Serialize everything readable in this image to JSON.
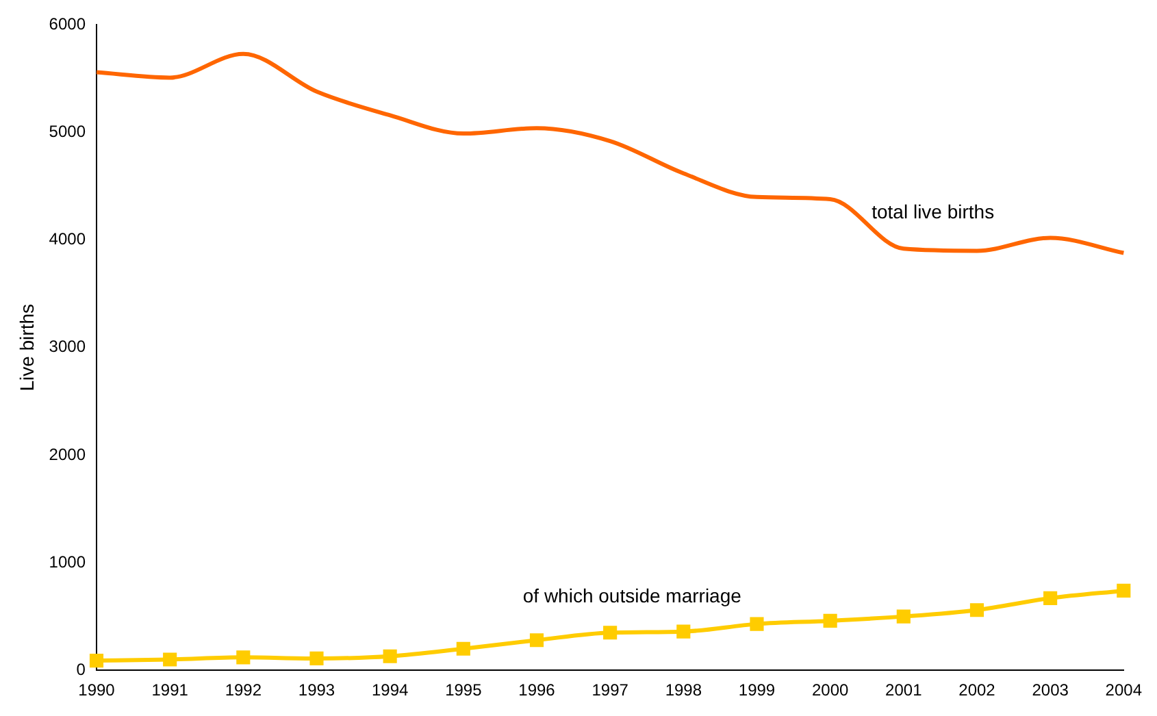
{
  "chart_data": {
    "type": "line",
    "ylabel": "Live births",
    "categories": [
      "1990",
      "1991",
      "1992",
      "1993",
      "1994",
      "1995",
      "1996",
      "1997",
      "1998",
      "1999",
      "2000",
      "2001",
      "2002",
      "2003",
      "2004"
    ],
    "series": [
      {
        "name": "total live births",
        "color": "#ff6600",
        "marker": "none",
        "values": [
          5560,
          5510,
          5730,
          5380,
          5160,
          4990,
          5040,
          4920,
          4620,
          4400,
          4380,
          3920,
          3900,
          4020,
          3880
        ]
      },
      {
        "name": "of which outside marriage",
        "color": "#ffcc00",
        "marker": "square",
        "values": [
          90,
          100,
          120,
          110,
          130,
          200,
          280,
          350,
          360,
          430,
          460,
          500,
          560,
          670,
          740
        ]
      }
    ],
    "ylim": [
      0,
      6000
    ],
    "yticks": [
      0,
      1000,
      2000,
      3000,
      4000,
      5000,
      6000
    ],
    "grid": false,
    "legend": false
  }
}
